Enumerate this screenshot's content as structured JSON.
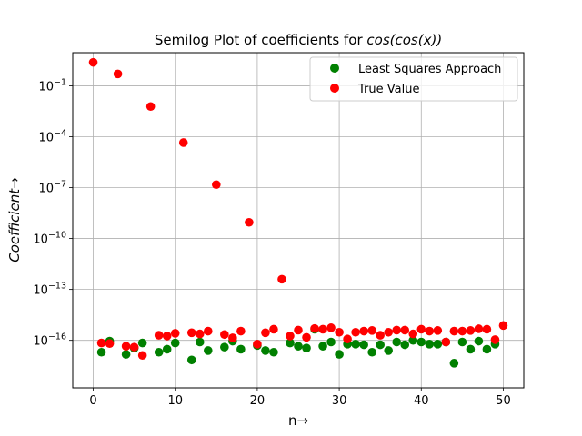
{
  "chart_data": {
    "type": "scatter",
    "title": "Semilog Plot of coefficients for cos(cos(x))",
    "title_prefix": "Semilog Plot of coefficients for ",
    "title_math": "cos(cos(x))",
    "xlabel": "n→",
    "ylabel": "Coefficient→",
    "ylabel_math": "Coefficient",
    "ylabel_arrow": "→",
    "xlim": [
      -2.5,
      52.5
    ],
    "ylim_exponent": [
      -18.8,
      0.95
    ],
    "y_scale": "log",
    "grid": true,
    "legend_position": "top-right",
    "x_ticks": [
      0,
      10,
      20,
      30,
      40,
      50
    ],
    "y_tick_exponents": [
      -16,
      -13,
      -10,
      -7,
      -4,
      -1
    ],
    "series": [
      {
        "name": "Least Squares Approach",
        "color": "#008000",
        "points": [
          [
            1,
            2e-17
          ],
          [
            2,
            9e-17
          ],
          [
            4,
            1.5e-17
          ],
          [
            5,
            3.5e-17
          ],
          [
            6,
            7e-17
          ],
          [
            8,
            2e-17
          ],
          [
            9,
            3e-17
          ],
          [
            10,
            7e-17
          ],
          [
            12,
            7e-18
          ],
          [
            13,
            8e-17
          ],
          [
            14,
            2.5e-17
          ],
          [
            16,
            4e-17
          ],
          [
            17,
            9e-17
          ],
          [
            18,
            3e-17
          ],
          [
            20,
            5e-17
          ],
          [
            21,
            2.5e-17
          ],
          [
            22,
            2e-17
          ],
          [
            24,
            7e-17
          ],
          [
            25,
            4.5e-17
          ],
          [
            26,
            3.5e-17
          ],
          [
            27,
            4.5e-16
          ],
          [
            28,
            4.5e-17
          ],
          [
            29,
            8e-17
          ],
          [
            30,
            1.5e-17
          ],
          [
            31,
            6e-17
          ],
          [
            32,
            6e-17
          ],
          [
            33,
            5.5e-17
          ],
          [
            34,
            2e-17
          ],
          [
            35,
            5.5e-17
          ],
          [
            36,
            2.5e-17
          ],
          [
            37,
            8e-17
          ],
          [
            38,
            5.5e-17
          ],
          [
            39,
            1e-16
          ],
          [
            40,
            8e-17
          ],
          [
            41,
            6e-17
          ],
          [
            42,
            6e-17
          ],
          [
            43,
            8e-17
          ],
          [
            44,
            4.5e-18
          ],
          [
            45,
            8e-17
          ],
          [
            46,
            3e-17
          ],
          [
            47,
            9e-17
          ],
          [
            48,
            3e-17
          ],
          [
            49,
            6e-17
          ]
        ]
      },
      {
        "name": "True Value",
        "color": "#ff0000",
        "points": [
          [
            0,
            2.4
          ],
          [
            1,
            7e-17
          ],
          [
            2,
            6.5e-17
          ],
          [
            3,
            0.5
          ],
          [
            4,
            4.5e-17
          ],
          [
            5,
            4e-17
          ],
          [
            6,
            1.3e-17
          ],
          [
            7,
            0.006
          ],
          [
            8,
            2e-16
          ],
          [
            9,
            1.8e-16
          ],
          [
            10,
            2.6e-16
          ],
          [
            11,
            4.5e-05
          ],
          [
            12,
            2.8e-16
          ],
          [
            13,
            2.4e-16
          ],
          [
            14,
            3.5e-16
          ],
          [
            15,
            1.5e-07
          ],
          [
            16,
            2.2e-16
          ],
          [
            17,
            1.4e-16
          ],
          [
            18,
            3.5e-16
          ],
          [
            19,
            9e-10
          ],
          [
            20,
            6e-17
          ],
          [
            21,
            2.8e-16
          ],
          [
            22,
            4.5e-16
          ],
          [
            23,
            4e-13
          ],
          [
            24,
            1.8e-16
          ],
          [
            25,
            4e-16
          ],
          [
            26,
            1.5e-16
          ],
          [
            27,
            5e-16
          ],
          [
            28,
            4.5e-16
          ],
          [
            29,
            5.5e-16
          ],
          [
            30,
            3e-16
          ],
          [
            31,
            1.2e-16
          ],
          [
            32,
            3e-16
          ],
          [
            33,
            3.5e-16
          ],
          [
            34,
            3.8e-16
          ],
          [
            35,
            2e-16
          ],
          [
            36,
            3e-16
          ],
          [
            37,
            4e-16
          ],
          [
            38,
            4e-16
          ],
          [
            39,
            2.4e-16
          ],
          [
            40,
            4.5e-16
          ],
          [
            41,
            3.5e-16
          ],
          [
            42,
            3.8e-16
          ],
          [
            43,
            8e-17
          ],
          [
            44,
            3.5e-16
          ],
          [
            45,
            3.5e-16
          ],
          [
            46,
            3.8e-16
          ],
          [
            47,
            4.8e-16
          ],
          [
            48,
            4.5e-16
          ],
          [
            49,
            1.1e-16
          ],
          [
            50,
            7.5e-16
          ]
        ]
      }
    ]
  }
}
